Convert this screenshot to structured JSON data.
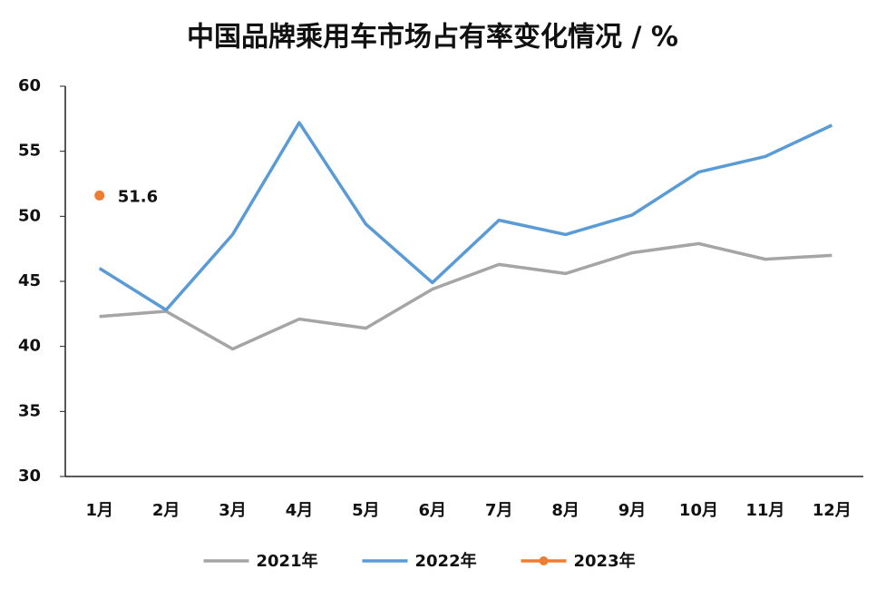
{
  "chart_data": {
    "type": "line",
    "title": "中国品牌乘用车市场占有率变化情况 / %",
    "categories": [
      "1月",
      "2月",
      "3月",
      "4月",
      "5月",
      "6月",
      "7月",
      "8月",
      "9月",
      "10月",
      "11月",
      "12月"
    ],
    "series": [
      {
        "name": "2021年",
        "color": "#a5a5a5",
        "values": [
          42.3,
          42.7,
          39.8,
          42.1,
          41.4,
          44.4,
          46.3,
          45.6,
          47.2,
          47.9,
          46.7,
          47.0
        ]
      },
      {
        "name": "2022年",
        "color": "#5b9bd5",
        "values": [
          46.0,
          42.8,
          48.6,
          57.2,
          49.4,
          44.9,
          49.7,
          48.6,
          50.1,
          53.4,
          54.6,
          57.0
        ]
      },
      {
        "name": "2023年",
        "color": "#ed7d31",
        "values": [
          51.6,
          null,
          null,
          null,
          null,
          null,
          null,
          null,
          null,
          null,
          null,
          null
        ],
        "marker": true,
        "show_labels": true
      }
    ],
    "ylim": [
      30,
      60
    ],
    "yticks": [
      30,
      35,
      40,
      45,
      50,
      55,
      60
    ],
    "grid": false,
    "legend": "bottom"
  }
}
